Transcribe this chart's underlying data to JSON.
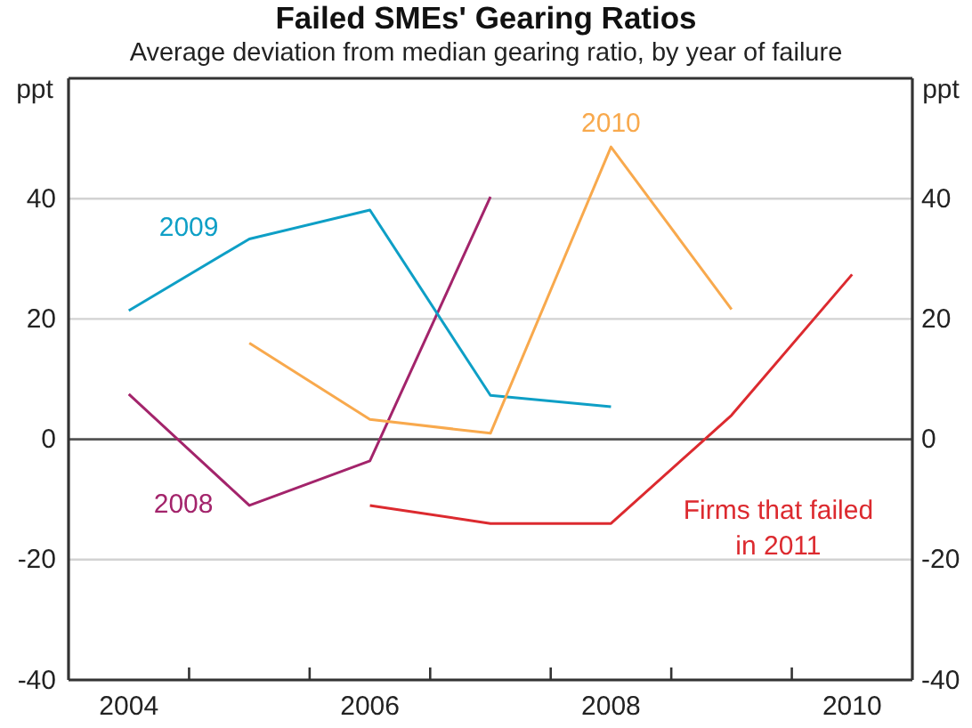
{
  "chart_data": {
    "type": "line",
    "title": "Failed SMEs' Gearing Ratios",
    "subtitle": "Average deviation from median gearing ratio, by year of failure",
    "ylabel": "ppt",
    "y2label": "ppt",
    "categories": [
      "2004",
      null,
      "2006",
      null,
      "2008",
      null,
      "2010"
    ],
    "series": [
      {
        "name": "2008",
        "color": "#a3246b",
        "values": [
          7.5,
          -11.0,
          -3.6,
          40.3,
          null,
          null,
          null
        ]
      },
      {
        "name": "2009",
        "color": "#0e9fc6",
        "values": [
          21.4,
          33.3,
          38.1,
          7.3,
          5.4,
          null,
          null
        ]
      },
      {
        "name": "2010",
        "color": "#f8a94d",
        "values": [
          null,
          16.0,
          3.3,
          1.0,
          48.6,
          21.6,
          null
        ]
      },
      {
        "name": "Firms that failed in 2011",
        "color": "#dc2a2f",
        "values": [
          null,
          null,
          -11.0,
          -14.0,
          -14.0,
          4.0,
          27.4
        ]
      }
    ],
    "ylim": [
      -40,
      60
    ],
    "yticks": [
      -40,
      -20,
      0,
      20,
      40
    ],
    "y2lim": [
      -40,
      60
    ],
    "y2ticks": [
      -40,
      -20,
      0,
      20,
      40
    ],
    "grid": "y",
    "ref_lines": [
      {
        "axis": "y",
        "value": 0,
        "color": "#555555"
      }
    ]
  }
}
